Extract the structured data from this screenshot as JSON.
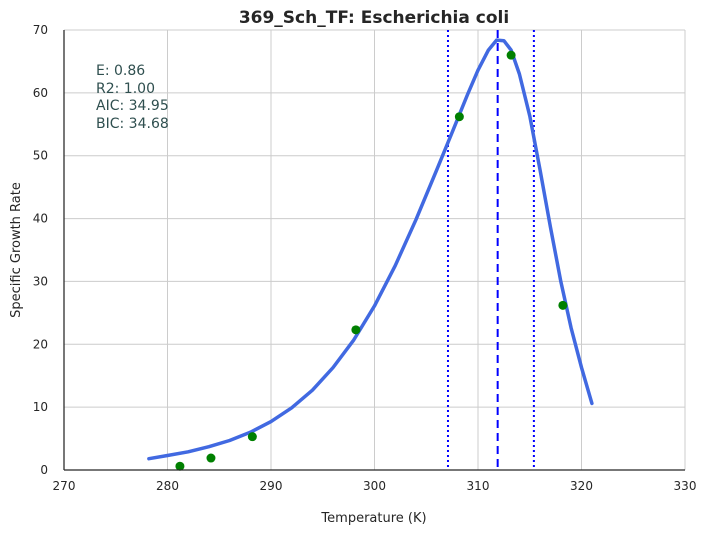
{
  "chart_data": {
    "type": "line",
    "title": "369_Sch_TF: Escherichia coli",
    "xlabel": "Temperature (K)",
    "ylabel": "Specific Growth Rate",
    "xlim": [
      270,
      330
    ],
    "ylim": [
      0,
      70
    ],
    "xticks": [
      270,
      280,
      290,
      300,
      310,
      320,
      330
    ],
    "yticks": [
      0,
      10,
      20,
      30,
      40,
      50,
      60,
      70
    ],
    "grid": true,
    "annotations": [
      "E:  0.86",
      "R2:  1.00",
      "AIC: 34.95",
      "BIC: 34.68"
    ],
    "series": [
      {
        "kind": "scatter",
        "color": "#008000",
        "points": [
          [
            281.2,
            0.6
          ],
          [
            284.2,
            1.9
          ],
          [
            288.2,
            5.3
          ],
          [
            298.2,
            22.3
          ],
          [
            308.2,
            56.2
          ],
          [
            313.2,
            66.0
          ],
          [
            318.2,
            26.2
          ]
        ]
      },
      {
        "kind": "line",
        "color": "#4169e1",
        "points": [
          [
            278.2,
            1.8
          ],
          [
            280,
            2.3
          ],
          [
            282,
            2.9
          ],
          [
            284,
            3.7
          ],
          [
            286,
            4.7
          ],
          [
            288,
            6.0
          ],
          [
            290,
            7.7
          ],
          [
            292,
            9.9
          ],
          [
            294,
            12.7
          ],
          [
            296,
            16.3
          ],
          [
            298,
            20.7
          ],
          [
            300,
            26.1
          ],
          [
            302,
            32.5
          ],
          [
            304,
            39.8
          ],
          [
            306,
            47.7
          ],
          [
            307.5,
            53.7
          ],
          [
            309,
            59.8
          ],
          [
            310,
            63.6
          ],
          [
            311,
            66.8
          ],
          [
            311.8,
            68.4
          ],
          [
            312.5,
            68.3
          ],
          [
            313.2,
            66.8
          ],
          [
            314,
            63.0
          ],
          [
            315,
            56.3
          ],
          [
            316,
            47.7
          ],
          [
            317,
            38.6
          ],
          [
            318,
            30.0
          ],
          [
            319,
            22.6
          ],
          [
            320,
            16.3
          ],
          [
            321,
            10.6
          ]
        ]
      }
    ],
    "vlines": [
      {
        "x": 307.1,
        "style": "dotted",
        "color": "#0000ff"
      },
      {
        "x": 311.9,
        "style": "dashed",
        "color": "#0000ff"
      },
      {
        "x": 315.4,
        "style": "dotted",
        "color": "#0000ff"
      }
    ]
  }
}
